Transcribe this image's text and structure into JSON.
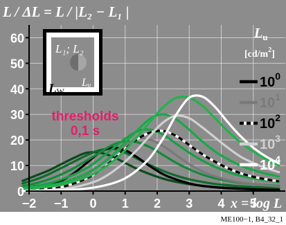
{
  "header": {
    "formula_title": "L / ΔL = L / |L₂ − L₁ |"
  },
  "inset": {
    "labels": [
      "L₁; L₂",
      "Lᵤ",
      "L_W"
    ],
    "label_l1l2": "L₁; L₂",
    "label_lu": "Lᵤ",
    "label_lw_main": "L",
    "label_lw_sub": "W"
  },
  "annotation": {
    "line1": "thresholds",
    "line2": "0,1 s",
    "color": "#e0206a"
  },
  "legend": {
    "title_main": "L",
    "title_sub": "u",
    "unit": "[cd/m²]",
    "unit_base": "[cd/m",
    "unit_sup": "2",
    "unit_end": "]",
    "entries": [
      {
        "base": "10",
        "exp": "0",
        "color": "#000000",
        "dash": false
      },
      {
        "base": "10",
        "exp": "1",
        "color": "#7a7a7a",
        "dash": false
      },
      {
        "base": "10",
        "exp": "2",
        "color": "#000000",
        "dash": true
      },
      {
        "base": "10",
        "exp": "3",
        "color": "#d0d0d0",
        "dash": false
      },
      {
        "base": "10",
        "exp": "4",
        "color": "#ffffff",
        "dash": false
      }
    ]
  },
  "footer": {
    "code": "ME100−1, B4_32_1"
  },
  "colors": {
    "background": "#8c8c8c",
    "dark_green": "#0b4a1e",
    "mid_green": "#138a3a",
    "bright_green": "#22b24c"
  },
  "chart_data": {
    "type": "line",
    "title": "L / ΔL = L / |L₂ − L₁ |",
    "xlabel": "x = log L",
    "ylabel": "",
    "xlim": [
      -2,
      6
    ],
    "ylim": [
      0,
      65
    ],
    "x_ticks": [
      "−2",
      "−1",
      "0",
      "1",
      "2",
      "3",
      "4",
      "5"
    ],
    "x_tick_values": [
      -2,
      -1,
      0,
      1,
      2,
      3,
      4,
      5
    ],
    "y_ticks": [
      "0",
      "10",
      "20",
      "30",
      "40",
      "50",
      "60"
    ],
    "y_tick_values": [
      0,
      10,
      20,
      30,
      40,
      50,
      60
    ],
    "grid": true,
    "legend_position": "right",
    "x": [
      -2.2,
      -1.8,
      -1.4,
      -1.0,
      -0.6,
      -0.2,
      0.2,
      0.6,
      1.0,
      1.4,
      1.8,
      2.2,
      2.6,
      3.0,
      3.4,
      3.8,
      4.2,
      4.6,
      5.0,
      5.4,
      5.8
    ],
    "series": [
      {
        "color": "#0b4a1e",
        "dash": false,
        "values": [
          4,
          6,
          8,
          10.5,
          13,
          15,
          15,
          13.5,
          11,
          8.5,
          6.5,
          4.8,
          3.6,
          2.7,
          2.1,
          1.6,
          1.3,
          1.1,
          0.9,
          0.8,
          0.7
        ]
      },
      {
        "color": "#0f6a2c",
        "dash": false,
        "values": [
          3,
          4.5,
          6.5,
          9,
          11.5,
          14,
          16,
          16.5,
          15,
          12.5,
          10,
          7.8,
          6,
          4.6,
          3.6,
          2.8,
          2.3,
          1.9,
          1.6,
          1.4,
          1.2
        ]
      },
      {
        "color": "#000000",
        "dash": false,
        "values": [
          0.5,
          1,
          2,
          4,
          7,
          11,
          15,
          17,
          16,
          13,
          9.5,
          6.5,
          4.5,
          3,
          2,
          1.5,
          1.1,
          0.9,
          0.7,
          0.6,
          0.5
        ]
      },
      {
        "color": "#138a3a",
        "dash": false,
        "values": [
          2,
          3,
          4.5,
          6.5,
          9,
          12,
          15,
          18,
          19.5,
          19,
          17,
          14,
          11,
          8.5,
          6.5,
          5,
          4,
          3.2,
          2.7,
          2.3,
          2
        ]
      },
      {
        "color": "#7a7a7a",
        "dash": false,
        "values": [
          0.3,
          0.6,
          1.2,
          2.3,
          4,
          6.5,
          10,
          14,
          18,
          20.5,
          20,
          17.5,
          14,
          10.5,
          7.8,
          5.8,
          4.4,
          3.4,
          2.7,
          2.2,
          1.8
        ]
      },
      {
        "color": "#1a9e45",
        "dash": false,
        "values": [
          1.5,
          2,
          3,
          4.5,
          6.5,
          9,
          12.5,
          16.5,
          20.5,
          23.5,
          24,
          22,
          18.5,
          15,
          12,
          9.5,
          7.5,
          6,
          5,
          4.2,
          3.6
        ]
      },
      {
        "color": "#000000",
        "dash": true,
        "values": [
          0.2,
          0.4,
          0.8,
          1.5,
          3,
          5,
          8,
          12,
          16.5,
          20.5,
          23,
          23.5,
          21.5,
          18,
          14.5,
          11.5,
          9,
          7,
          5.6,
          4.6,
          3.8
        ]
      },
      {
        "color": "#1aa84a",
        "dash": false,
        "values": [
          1,
          1.5,
          2.2,
          3.2,
          4.8,
          7,
          10,
          14,
          19,
          24,
          28.5,
          30,
          28,
          24,
          19.5,
          15.5,
          12.5,
          10,
          8.2,
          6.8,
          5.7
        ]
      },
      {
        "color": "#d0d0d0",
        "dash": false,
        "values": [
          0.1,
          0.2,
          0.4,
          0.8,
          1.5,
          2.7,
          4.5,
          7.5,
          11.5,
          16.5,
          22,
          27,
          29.5,
          28.5,
          25,
          21,
          17,
          13.5,
          11,
          9,
          7.4
        ]
      },
      {
        "color": "#22b24c",
        "dash": false,
        "values": [
          0.8,
          1.2,
          1.8,
          2.6,
          3.8,
          5.5,
          8,
          11.5,
          16,
          21.5,
          27.5,
          33,
          36.5,
          36.5,
          33.5,
          28.5,
          23.5,
          19,
          15.5,
          12.5,
          10
        ]
      },
      {
        "color": "#ffffff",
        "dash": false,
        "values": [
          0.05,
          0.1,
          0.2,
          0.3,
          0.6,
          1,
          1.8,
          3,
          5,
          8.5,
          13.5,
          21,
          30,
          36.5,
          37,
          33,
          27,
          21.5,
          17,
          13.5,
          10.8
        ]
      }
    ]
  }
}
